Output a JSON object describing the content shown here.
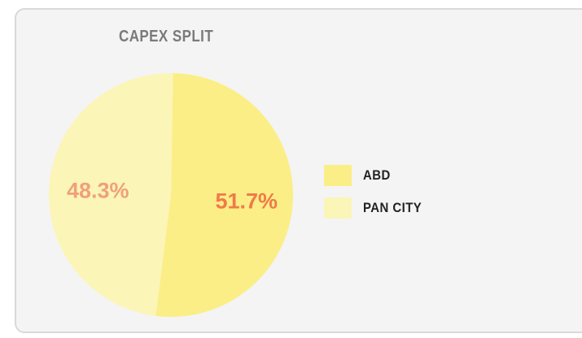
{
  "chart_data": {
    "type": "pie",
    "title": "CAPEX SPLIT",
    "slices": [
      {
        "label": "ABD",
        "value": 51.7,
        "value_label": "51.7%",
        "color": "#fbee86",
        "label_color": "#f07a4a"
      },
      {
        "label": "PAN CITY",
        "value": 48.3,
        "value_label": "48.3%",
        "color": "#fbf5b8",
        "label_color": "#f0a07a"
      }
    ],
    "legend_position": "right"
  }
}
